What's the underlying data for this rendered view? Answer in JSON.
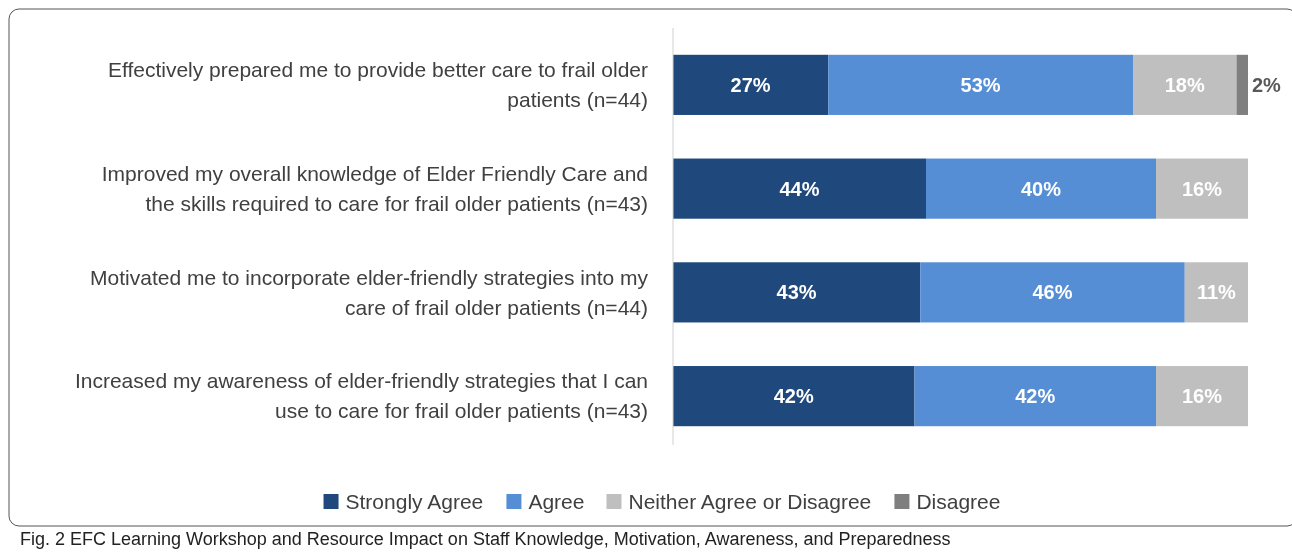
{
  "chart_data": {
    "type": "bar",
    "orientation": "horizontal",
    "stacked": true,
    "legend": "bottom",
    "categories": [
      "Effectively prepared me to provide better care to frail older patients (n=44)",
      "Improved my overall knowledge of Elder Friendly Care and the skills required to care for frail older patients (n=43)",
      "Motivated me to incorporate elder-friendly strategies into my care of frail older patients (n=44)",
      "Increased my awareness of elder-friendly strategies that I can use to care for frail older patients (n=43)"
    ],
    "series": [
      {
        "name": "Strongly Agree",
        "color": "#1f497d",
        "values": [
          27,
          44,
          43,
          42
        ],
        "value_labels": [
          "27%",
          "44%",
          "43%",
          "42%"
        ]
      },
      {
        "name": "Agree",
        "color": "#558ed5",
        "values": [
          53,
          40,
          46,
          42
        ],
        "value_labels": [
          "53%",
          "40%",
          "46%",
          "42%"
        ]
      },
      {
        "name": "Neither Agree or Disagree",
        "color": "#bfbfbf",
        "values": [
          18,
          16,
          11,
          16
        ],
        "value_labels": [
          "18%",
          "16%",
          "11%",
          "16%"
        ]
      },
      {
        "name": "Disagree",
        "color": "#7f7f7f",
        "values": [
          2,
          null,
          null,
          null
        ],
        "value_labels": [
          "2%",
          null,
          null,
          null
        ]
      }
    ],
    "annotations": [
      "Fig. 2 EFC Learning Workshop and Resource Impact on Staff Knowledge, Motivation, Awareness, and Preparedness"
    ]
  }
}
